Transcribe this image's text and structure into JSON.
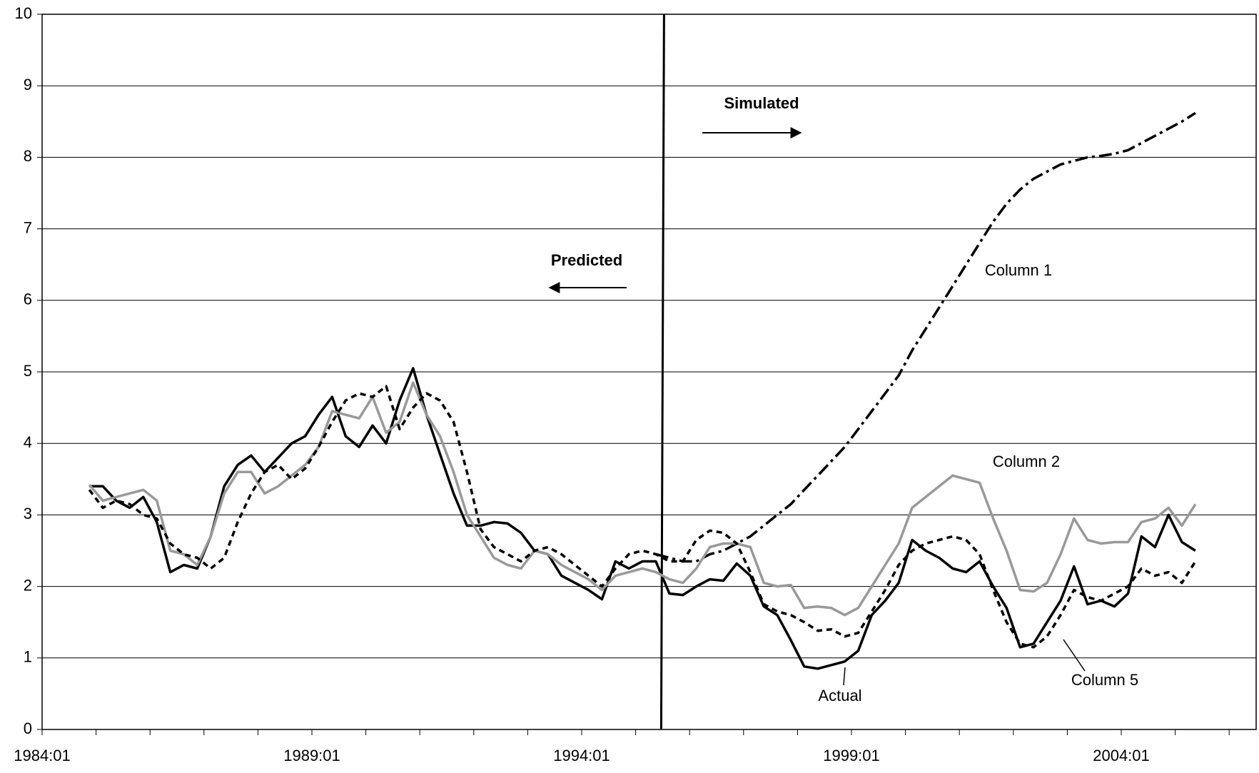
{
  "chart_data": {
    "type": "line",
    "x": [
      1984.875,
      1985.125,
      1985.375,
      1985.625,
      1985.875,
      1986.125,
      1986.375,
      1986.625,
      1986.875,
      1987.125,
      1987.375,
      1987.625,
      1987.875,
      1988.125,
      1988.375,
      1988.625,
      1988.875,
      1989.125,
      1989.375,
      1989.625,
      1989.875,
      1990.125,
      1990.375,
      1990.625,
      1990.875,
      1991.125,
      1991.375,
      1991.625,
      1991.875,
      1992.125,
      1992.375,
      1992.625,
      1992.875,
      1993.125,
      1993.375,
      1993.625,
      1993.875,
      1994.125,
      1994.375,
      1994.625,
      1994.875,
      1995.125,
      1995.375,
      1995.625,
      1995.875,
      1996.125,
      1996.375,
      1996.625,
      1996.875,
      1997.125,
      1997.375,
      1997.625,
      1997.875,
      1998.125,
      1998.375,
      1998.625,
      1998.875,
      1999.125,
      1999.375,
      1999.625,
      1999.875,
      2000.125,
      2000.375,
      2000.625,
      2000.875,
      2001.125,
      2001.375,
      2001.625,
      2001.875,
      2002.125,
      2002.375,
      2002.625,
      2002.875,
      2003.125,
      2003.375,
      2003.625,
      2003.875,
      2004.125,
      2004.375,
      2004.625,
      2004.875,
      2005.125,
      2005.375
    ],
    "series": [
      {
        "name": "Actual",
        "color": "#000000",
        "style": "solid",
        "values": [
          3.4,
          3.4,
          3.2,
          3.1,
          3.25,
          2.9,
          2.2,
          2.3,
          2.25,
          2.7,
          3.4,
          3.7,
          3.83,
          3.6,
          3.8,
          4.0,
          4.1,
          4.4,
          4.65,
          4.1,
          3.95,
          4.25,
          4.0,
          4.6,
          5.05,
          4.4,
          3.85,
          3.3,
          2.85,
          2.85,
          2.9,
          2.88,
          2.75,
          2.5,
          2.45,
          2.15,
          2.05,
          1.95,
          1.82,
          2.35,
          2.25,
          2.35,
          2.35,
          1.9,
          1.88,
          2.0,
          2.1,
          2.08,
          2.32,
          2.15,
          1.72,
          1.6,
          1.25,
          0.88,
          0.85,
          0.9,
          0.95,
          1.1,
          1.6,
          1.8,
          2.05,
          2.65,
          2.5,
          2.4,
          2.25,
          2.2,
          2.35,
          2.0,
          1.7,
          1.15,
          1.2,
          1.5,
          1.8,
          2.28,
          1.75,
          1.8,
          1.72,
          1.9,
          2.7,
          2.55,
          3.0,
          2.62,
          2.5
        ]
      },
      {
        "name": "Column 1",
        "color": "#000000",
        "style": "dashed",
        "values": [
          null,
          null,
          null,
          null,
          null,
          null,
          null,
          null,
          null,
          null,
          null,
          null,
          null,
          null,
          null,
          null,
          null,
          null,
          null,
          null,
          null,
          null,
          null,
          null,
          null,
          null,
          null,
          null,
          null,
          null,
          null,
          null,
          null,
          null,
          null,
          null,
          null,
          null,
          null,
          null,
          null,
          null,
          2.45,
          2.4,
          2.35,
          2.35,
          2.45,
          2.5,
          2.6,
          2.7,
          2.85,
          3.0,
          3.15,
          3.35,
          3.55,
          3.75,
          3.95,
          4.2,
          4.45,
          4.7,
          4.95,
          5.3,
          5.6,
          5.9,
          6.2,
          6.5,
          6.8,
          7.1,
          7.35,
          7.55,
          7.7,
          7.8,
          7.9,
          7.95,
          8.0,
          8.02,
          8.05,
          8.1,
          8.2,
          8.3,
          8.4,
          8.5,
          8.62
        ]
      },
      {
        "name": "Column 2",
        "color": "#999999",
        "style": "solid",
        "values": [
          3.42,
          3.2,
          3.25,
          3.3,
          3.35,
          3.2,
          2.5,
          2.45,
          2.3,
          2.7,
          3.3,
          3.6,
          3.6,
          3.3,
          3.4,
          3.55,
          3.7,
          3.95,
          4.45,
          4.4,
          4.35,
          4.65,
          4.15,
          4.3,
          4.85,
          4.4,
          4.1,
          3.6,
          3.0,
          2.7,
          2.4,
          2.3,
          2.25,
          2.5,
          2.45,
          2.3,
          2.2,
          2.1,
          1.95,
          2.15,
          2.2,
          2.25,
          2.2,
          2.1,
          2.05,
          2.25,
          2.55,
          2.6,
          2.6,
          2.55,
          2.05,
          2.0,
          2.02,
          1.7,
          1.72,
          1.7,
          1.6,
          1.7,
          2.0,
          2.3,
          2.6,
          3.1,
          3.25,
          3.4,
          3.55,
          3.5,
          3.45,
          2.95,
          2.5,
          1.95,
          1.93,
          2.05,
          2.45,
          2.95,
          2.65,
          2.6,
          2.62,
          2.62,
          2.9,
          2.95,
          3.1,
          2.85,
          3.15
        ]
      },
      {
        "name": "Column 5",
        "color": "#000000",
        "style": "dotted",
        "values": [
          3.35,
          3.1,
          3.2,
          3.15,
          3.0,
          2.95,
          2.6,
          2.45,
          2.4,
          2.25,
          2.4,
          2.9,
          3.3,
          3.6,
          3.7,
          3.5,
          3.65,
          3.95,
          4.3,
          4.6,
          4.7,
          4.65,
          4.8,
          4.2,
          4.5,
          4.7,
          4.6,
          4.3,
          3.6,
          2.8,
          2.55,
          2.45,
          2.35,
          2.5,
          2.55,
          2.45,
          2.3,
          2.15,
          2.0,
          2.25,
          2.45,
          2.5,
          2.45,
          2.35,
          2.35,
          2.65,
          2.78,
          2.75,
          2.6,
          2.2,
          1.75,
          1.65,
          1.6,
          1.5,
          1.38,
          1.4,
          1.3,
          1.35,
          1.65,
          1.95,
          2.3,
          2.5,
          2.6,
          2.65,
          2.7,
          2.65,
          2.45,
          1.95,
          1.5,
          1.2,
          1.15,
          1.3,
          1.6,
          1.95,
          1.85,
          1.8,
          1.9,
          2.0,
          2.25,
          2.15,
          2.2,
          2.05,
          2.35
        ]
      }
    ],
    "xlim": [
      1984,
      2006.5
    ],
    "xticks": [
      {
        "value": 1984,
        "label": "1984:01"
      },
      {
        "value": 1989,
        "label": "1989:01"
      },
      {
        "value": 1994,
        "label": "1994:01"
      },
      {
        "value": 1999,
        "label": "1999:01"
      },
      {
        "value": 2004,
        "label": "2004:01"
      }
    ],
    "xminor_ticks": [
      1985,
      1986,
      1987,
      1988,
      1990,
      1991,
      1992,
      1993,
      1995,
      1996,
      1997,
      1998,
      2000,
      2001,
      2002,
      2003,
      2005,
      2006
    ],
    "ylim": [
      0,
      10
    ],
    "yticks": [
      0,
      1,
      2,
      3,
      4,
      5,
      6,
      7,
      8,
      9,
      10
    ],
    "grid": true,
    "divider_x": 1995.5,
    "annotations": {
      "predicted": "Predicted",
      "simulated": "Simulated"
    }
  }
}
